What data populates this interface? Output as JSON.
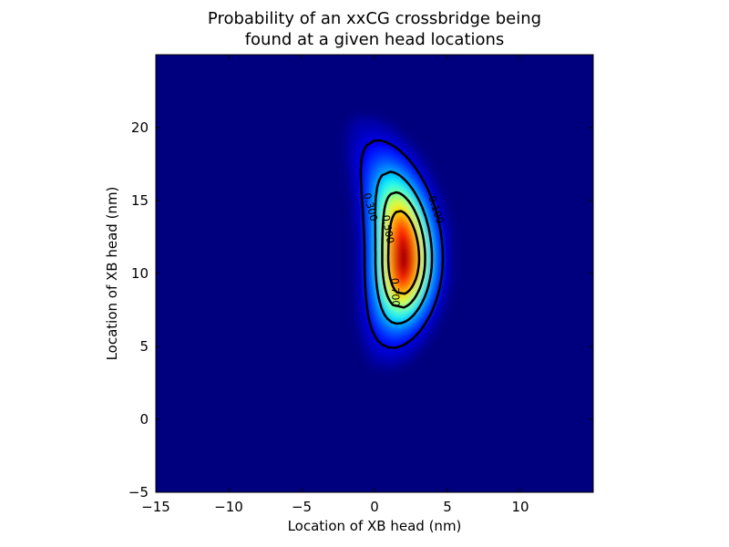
{
  "chart_data": {
    "type": "heatmap",
    "title_lines": [
      "Probability of an xxCG crossbridge being",
      "found at a given head locations"
    ],
    "xlabel": "Location of XB head (nm)",
    "ylabel": "Location of XB head (nm)",
    "xlim": [
      -15,
      15
    ],
    "ylim": [
      -5,
      25
    ],
    "x_ticks": [
      -15,
      -10,
      -5,
      0,
      5,
      10
    ],
    "y_ticks": [
      -5,
      0,
      5,
      10,
      15,
      20
    ],
    "x_tick_labels": [
      "−15",
      "−10",
      "−5",
      "0",
      "5",
      "10"
    ],
    "y_tick_labels": [
      "−5",
      "0",
      "5",
      "10",
      "15",
      "20"
    ],
    "colormap": "jet",
    "background_color": "#00007f",
    "distribution": {
      "shape": "crescent",
      "arc_center": [
        -13,
        11
      ],
      "arc_radius": 15,
      "angle_center_deg": 0,
      "angle_span_deg": [
        -28,
        37
      ],
      "peak": [
        2,
        11
      ]
    },
    "contour_levels": [
      "0.100",
      "0.300",
      "0.500",
      "0.700"
    ],
    "contour_labels": [
      {
        "text": "0.100",
        "x": 4.0,
        "y": 14.3,
        "angle": 72
      },
      {
        "text": "0.300",
        "x": -0.5,
        "y": 14.5,
        "angle": 75
      },
      {
        "text": "0.500",
        "x": 0.7,
        "y": 13.0,
        "angle": 80
      },
      {
        "text": "0.700",
        "x": 1.2,
        "y": 8.7,
        "angle": 88
      }
    ],
    "grid": false,
    "legend": "none"
  }
}
